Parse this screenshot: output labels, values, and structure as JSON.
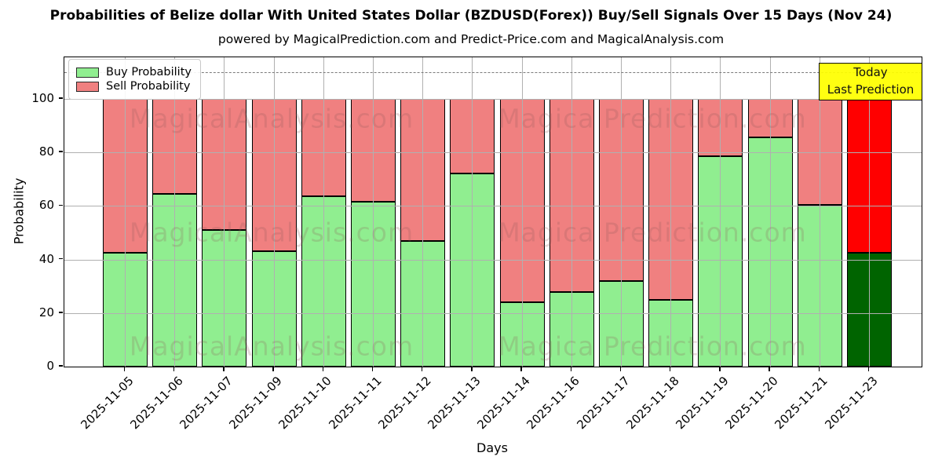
{
  "title": "Probabilities of Belize dollar With United States Dollar (BZDUSD(Forex)) Buy/Sell Signals Over 15 Days (Nov 24)",
  "subtitle": "powered by MagicalPrediction.com and Predict-Price.com and MagicalAnalysis.com",
  "legend": {
    "buy_label": "Buy Probability",
    "sell_label": "Sell Probability"
  },
  "annotation_box": {
    "line1": "Today",
    "line2": "Last Prediction",
    "background": "#FFFF00"
  },
  "watermarks": {
    "left_text": "MagicalAnalysis.com",
    "right_text": "Magica Prediction.com"
  },
  "chart_data": {
    "type": "bar",
    "stacked": true,
    "title": "Probabilities of Belize dollar With United States Dollar (BZDUSD(Forex)) Buy/Sell Signals Over 15 Days (Nov 24)",
    "xlabel": "Days",
    "ylabel": "Probability",
    "ylim": [
      0,
      115.5
    ],
    "yticks": [
      0,
      20,
      40,
      60,
      80,
      100
    ],
    "dashed_line_y": 110,
    "grid": true,
    "legend_position": "upper left",
    "categories": [
      "2025-11-05",
      "2025-11-06",
      "2025-11-07",
      "2025-11-09",
      "2025-11-10",
      "2025-11-11",
      "2025-11-12",
      "2025-11-13",
      "2025-11-14",
      "2025-11-16",
      "2025-11-17",
      "2025-11-18",
      "2025-11-19",
      "2025-11-20",
      "2025-11-21",
      "2025-11-23"
    ],
    "series": [
      {
        "name": "Buy Probability",
        "color": "#90EE90",
        "values": [
          42.5,
          64.5,
          51,
          43,
          63.5,
          61.5,
          47,
          72,
          24,
          28,
          32,
          25,
          78.5,
          85.5,
          60.5,
          42.5
        ]
      },
      {
        "name": "Sell Probability",
        "color": "#F08080",
        "values": [
          57.5,
          35.5,
          49,
          57,
          36.5,
          38.5,
          53,
          28,
          76,
          72,
          68,
          75,
          21.5,
          14.5,
          39.5,
          57.5
        ]
      }
    ],
    "highlight_index": 15,
    "highlight_colors": {
      "buy": "#006400",
      "sell": "#FF0000"
    }
  },
  "colors": {
    "buy": "#90EE90",
    "sell": "#F08080",
    "today_buy": "#006400",
    "today_sell": "#FF0000",
    "grid": "#B0B0B0",
    "dashed_line": "#7A7A7A",
    "annotation_bg": "#FFFF00",
    "watermark": "#8F5A5A"
  }
}
